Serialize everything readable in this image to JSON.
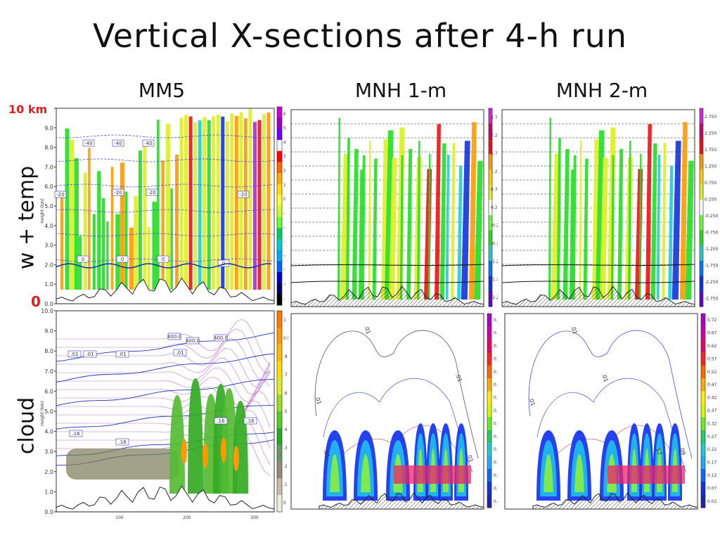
{
  "slide": {
    "title": "Vertical X-sections after 4-h run",
    "columns": [
      "MM5",
      "MNH 1-m",
      "MNH 2-m"
    ],
    "row_labels": [
      "w + temp",
      "cloud"
    ],
    "height_marks": {
      "top": "10 km",
      "bottom": "0"
    }
  },
  "mm5_top": {
    "axis_label": "Height (km)",
    "y_ticks": [
      "10.0",
      "9.0",
      "8.0",
      "7.0",
      "6.0",
      "5.0",
      "4.0",
      "3.0",
      "2.0",
      "1.0",
      "0.0"
    ],
    "temp_labels": [
      "-40",
      "-40",
      "-40",
      "-20",
      "-20",
      "-20",
      "-20",
      "0",
      "0",
      "0",
      "0"
    ],
    "colorbar_ticks": [
      "60",
      "50",
      "40",
      "30",
      "20",
      "10",
      "0",
      "-10",
      "-20",
      "-30",
      "-40",
      "-50",
      "-60",
      "-70"
    ]
  },
  "mm5_bottom": {
    "axis_label": "Height (km)",
    "y_ticks": [
      "10.0",
      "9.0",
      "8.0",
      "7.0",
      "6.0",
      "5.0",
      "4.0",
      "3.0",
      "2.0",
      "1.0",
      "0.0"
    ],
    "x_ticks": [
      "100",
      "200",
      "300"
    ],
    "contour_labels": [
      ".01",
      ".01",
      ".01",
      ".01",
      ".16",
      ".16",
      ".16",
      ".16",
      "400.0",
      "400.0",
      "400.0"
    ],
    "colorbar_ticks": [
      "1",
      "0.9",
      ".8",
      ".7",
      ".6",
      ".5",
      ".4",
      ".3",
      ".2",
      ".1",
      "0"
    ]
  },
  "mnh1_top": {
    "colorbar_ticks": [
      "2.75",
      "2.25",
      "1.75",
      "1.25",
      "0.75",
      "0.25",
      "-0.25",
      "-0.75",
      "-1.25",
      "-1.75",
      "-2.25"
    ]
  },
  "mnh2_top": {
    "colorbar_ticks": [
      "2.750",
      "2.250",
      "1.750",
      "1.250",
      "0.750",
      "0.250",
      "-0.250",
      "-0.750",
      "-1.250",
      "-1.750",
      "-2.250",
      "-2.750"
    ]
  },
  "mnh1_bottom": {
    "contour_labels": [
      ".01",
      ".01",
      ".01",
      ".01",
      ".01"
    ],
    "colorbar_ticks": [
      "0.72",
      "0.67",
      "0.62",
      "0.57",
      "0.52",
      "0.47",
      "0.42",
      "0.37",
      "0.32",
      "0.27",
      "0.22",
      "0.17",
      "0.12",
      "0.07",
      "0.02"
    ]
  },
  "mnh2_bottom": {
    "contour_labels": [
      ".01",
      ".01",
      ".01",
      ".09",
      ".17"
    ],
    "colorbar_ticks": [
      "0.72",
      "0.67",
      "0.62",
      "0.57",
      "0.52",
      "0.47",
      "0.42",
      "0.37",
      "0.32",
      "0.27",
      "0.22",
      "0.17",
      "0.12",
      "0.07",
      "0.02"
    ]
  },
  "colors": {
    "green": "#22dd22",
    "yellow": "#ddee22",
    "orange": "#ff9900",
    "red": "#ee1111",
    "blue": "#1133dd",
    "cyan": "#22cccc",
    "purple": "#9933cc",
    "magenta": "#dd22dd"
  }
}
